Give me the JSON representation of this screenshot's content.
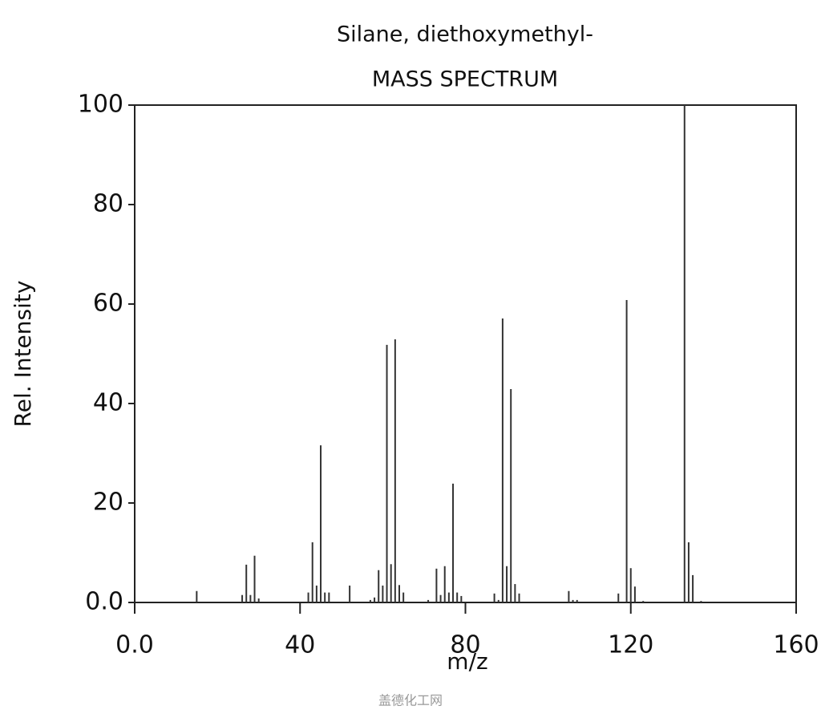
{
  "chart_data": {
    "type": "stem",
    "title": "Silane, diethoxymethyl-",
    "subtitle": "MASS SPECTRUM",
    "xlabel": "m/z",
    "ylabel": "Rel. Intensity",
    "watermark": "盖德化工网",
    "color": "#333333",
    "x": [
      15,
      26,
      27,
      28,
      29,
      30,
      42,
      43,
      44,
      45,
      46,
      47,
      52,
      57,
      58,
      59,
      60,
      61,
      62,
      63,
      64,
      65,
      71,
      73,
      74,
      75,
      76,
      77,
      78,
      79,
      87,
      88,
      89,
      90,
      91,
      92,
      93,
      105,
      106,
      107,
      117,
      119,
      120,
      121,
      123,
      133,
      134,
      135,
      137
    ],
    "values": [
      2.3,
      1.5,
      7.6,
      1.5,
      9.4,
      0.8,
      2,
      12.1,
      3.4,
      31.6,
      2,
      2,
      3.4,
      0.5,
      1,
      6.5,
      3.4,
      51.8,
      7.7,
      52.9,
      3.5,
      2,
      0.5,
      6.8,
      1.5,
      7.3,
      2,
      23.9,
      2,
      1.3,
      1.8,
      0.5,
      57.1,
      7.3,
      42.9,
      3.7,
      1.8,
      2.3,
      0.5,
      0.5,
      1.8,
      60.8,
      6.9,
      3.2,
      0.3,
      100,
      12.1,
      5.5,
      0.3
    ],
    "xlim": [
      0,
      160
    ],
    "ylim": [
      0,
      100
    ],
    "xticks": [
      {
        "value": 0,
        "label": "0.0"
      },
      40,
      80,
      120,
      160
    ],
    "yticks": [
      {
        "value": 0,
        "label": "0.0"
      },
      20,
      40,
      60,
      80,
      100
    ]
  }
}
